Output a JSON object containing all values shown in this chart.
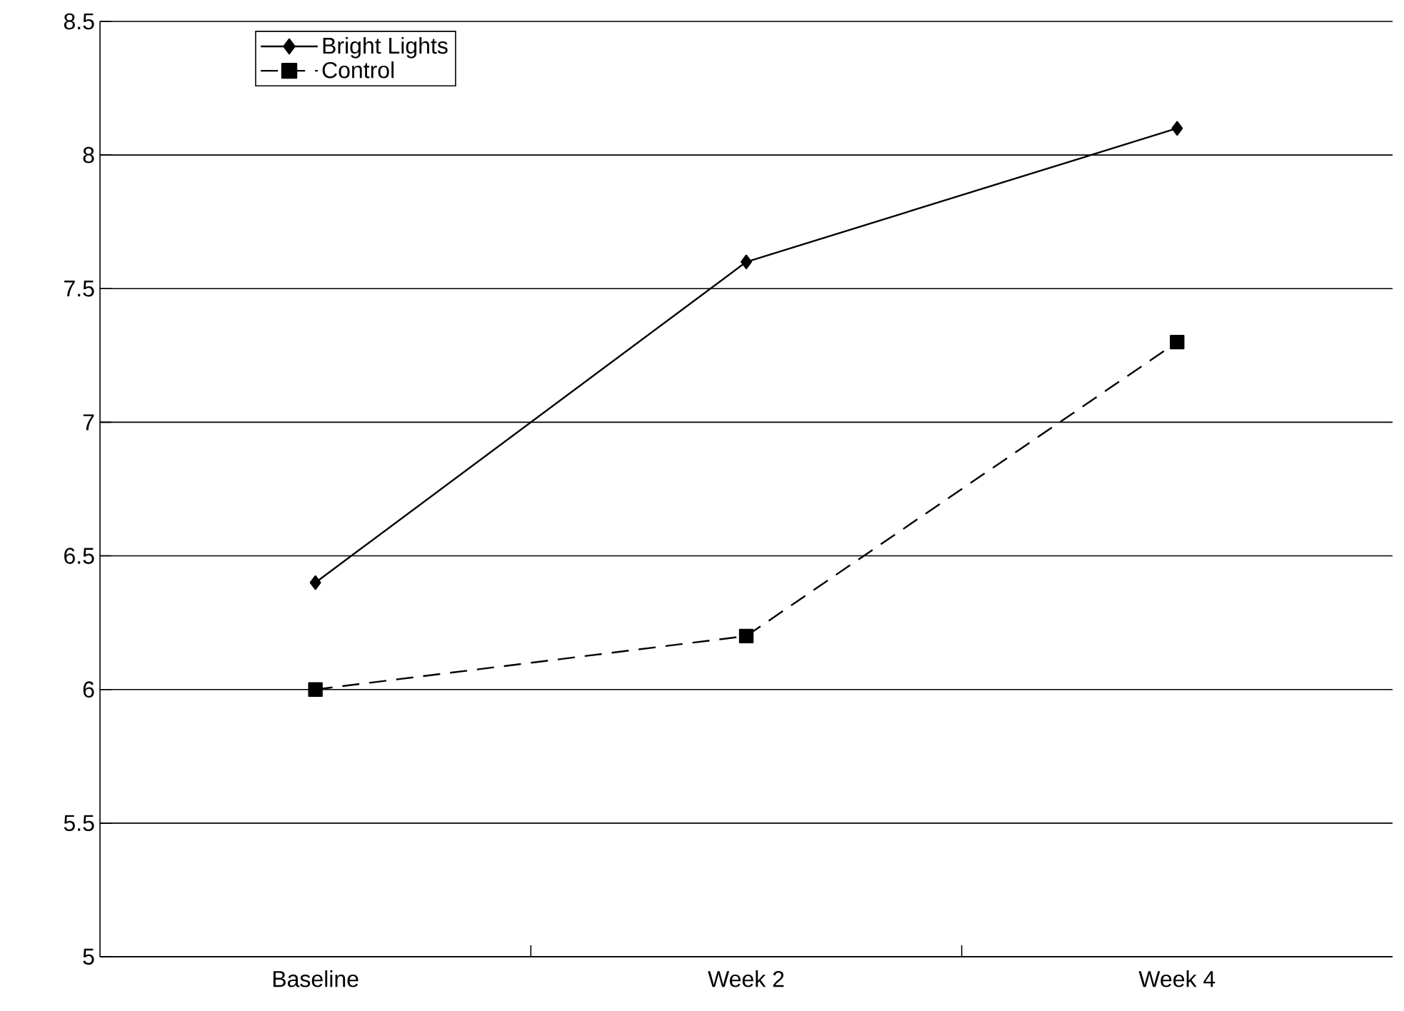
{
  "chart_data": {
    "type": "line",
    "categories": [
      "Baseline",
      "Week 2",
      "Week 4"
    ],
    "series": [
      {
        "name": "Bright Lights",
        "color": "#000000",
        "values": [
          6.4,
          7.6,
          8.1
        ],
        "marker": "diamond",
        "line_style": "solid"
      },
      {
        "name": "Control",
        "color": "#000000",
        "values": [
          6.0,
          6.2,
          7.3
        ],
        "marker": "square",
        "line_style": "dashed"
      }
    ],
    "ylim": [
      5,
      8.5
    ],
    "yticks": [
      5,
      5.5,
      6,
      6.5,
      7,
      7.5,
      8,
      8.5
    ],
    "grid": "y",
    "legend": "top left"
  }
}
